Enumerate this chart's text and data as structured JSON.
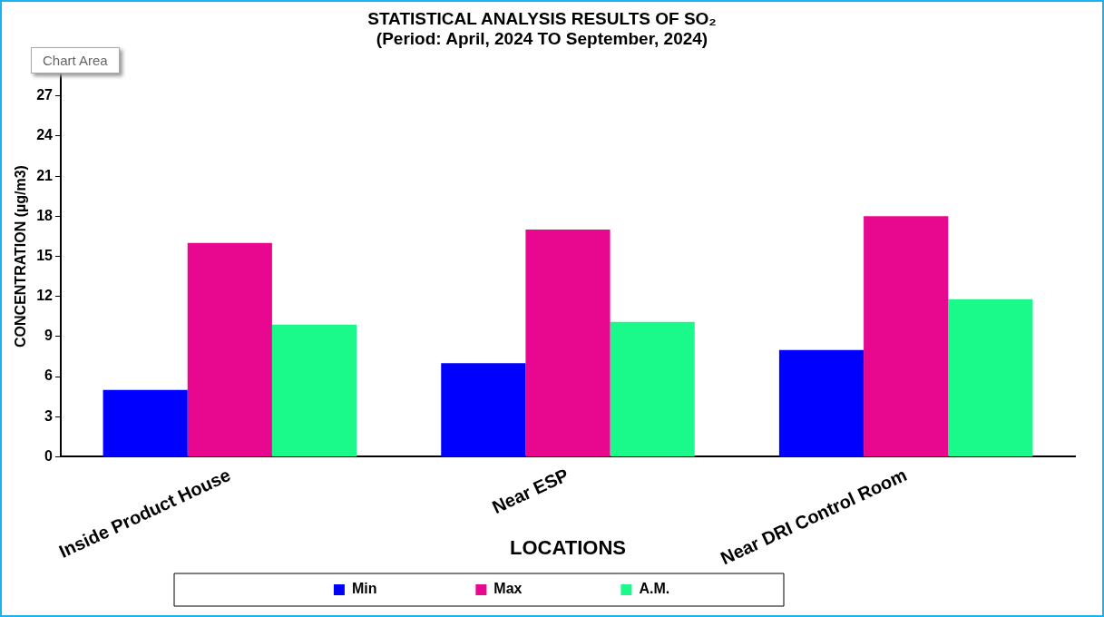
{
  "chart_data": {
    "type": "bar",
    "title": "STATISTICAL ANALYSIS RESULTS OF SO₂",
    "subtitle": "(Period: April, 2024 TO September, 2024)",
    "xlabel": "LOCATIONS",
    "ylabel": "CONCENTRATION (µg/m3)",
    "categories": [
      "Inside Product House",
      "Near ESP",
      "Near DRI Control Room"
    ],
    "series": [
      {
        "name": "Min",
        "color": "#0000ff",
        "values": [
          5,
          7,
          8
        ]
      },
      {
        "name": "Max",
        "color": "#e8088f",
        "values": [
          16,
          17,
          18
        ]
      },
      {
        "name": "A.M.",
        "color": "#19fa8a",
        "values": [
          9.9,
          10.1,
          11.8
        ]
      }
    ],
    "ylim": [
      0,
      30
    ],
    "yticks": [
      0,
      3,
      6,
      9,
      12,
      15,
      18,
      21,
      24,
      27
    ],
    "grid": false,
    "legend": "bottom",
    "annotations": [
      "Chart Area"
    ]
  }
}
